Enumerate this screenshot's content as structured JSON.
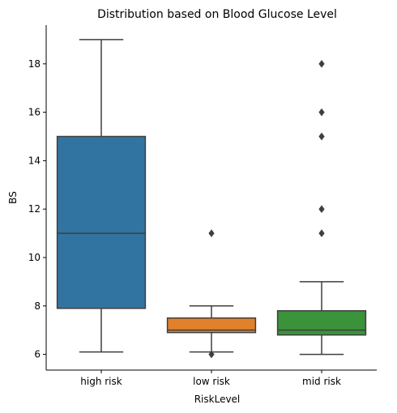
{
  "chart_data": {
    "type": "box",
    "title": "Distribution based on Blood Glucose Level",
    "xlabel": "RiskLevel",
    "ylabel": "BS",
    "ylim": [
      5.35,
      19.6
    ],
    "yticks": [
      6,
      8,
      10,
      12,
      14,
      16,
      18
    ],
    "grid": false,
    "categories": [
      "high risk",
      "low risk",
      "mid risk"
    ],
    "boxes": [
      {
        "category": "high risk",
        "whisker_low": 6.1,
        "q1": 7.9,
        "median": 11.0,
        "q3": 15.0,
        "whisker_high": 19.0,
        "outliers": [],
        "color": "#3274a1"
      },
      {
        "category": "low risk",
        "whisker_low": 6.1,
        "q1": 6.9,
        "median": 7.0,
        "q3": 7.5,
        "whisker_high": 8.0,
        "outliers": [
          6.0,
          11.0
        ],
        "color": "#e1812c"
      },
      {
        "category": "mid risk",
        "whisker_low": 6.0,
        "q1": 6.8,
        "median": 7.0,
        "q3": 7.8,
        "whisker_high": 9.0,
        "outliers": [
          11.0,
          12.0,
          15.0,
          16.0,
          18.0
        ],
        "color": "#3a923a"
      }
    ]
  }
}
